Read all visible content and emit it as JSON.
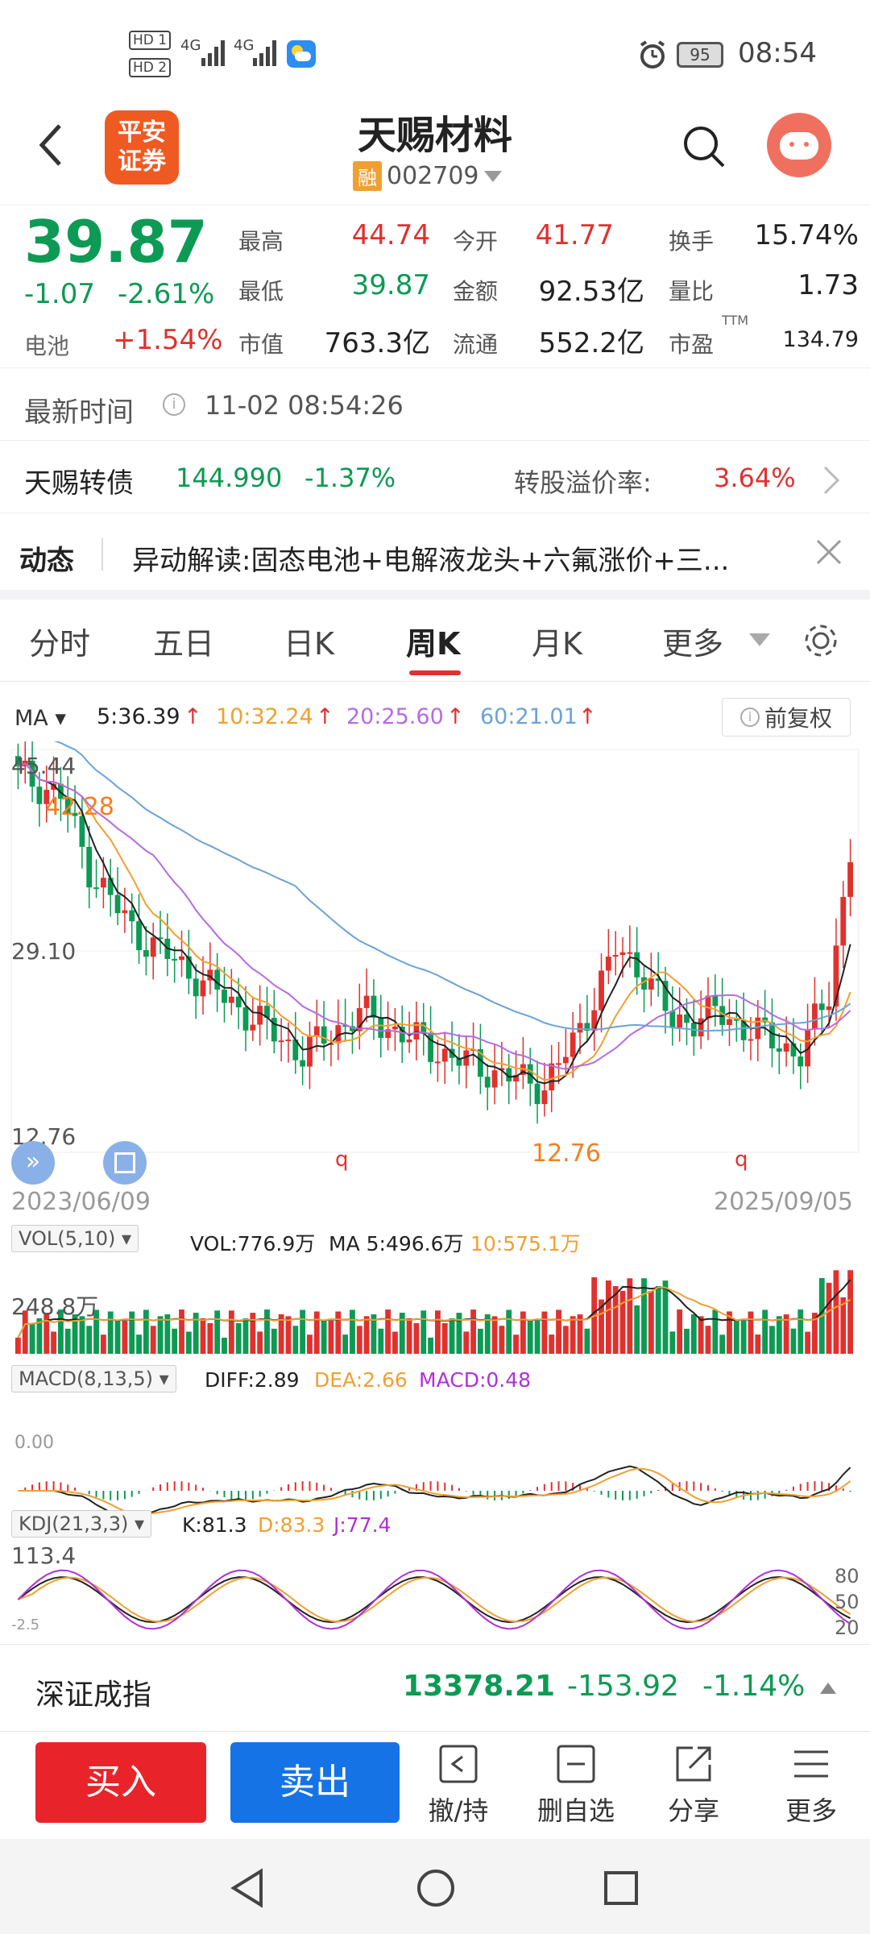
{
  "status_bar": {
    "hd1": "HD 1",
    "hd2": "HD 2",
    "net1": "4G",
    "net2": "4G",
    "battery": "95",
    "time": "08:54"
  },
  "header": {
    "logo_line1": "平安",
    "logo_line2": "证券",
    "title": "天赐材料",
    "rong_badge": "融",
    "code": "002709"
  },
  "quote": {
    "price": "39.87",
    "change": "-1.07",
    "change_pct": "-2.61%",
    "sector_label": "电池",
    "sector_pct": "+1.54%",
    "high_label": "最高",
    "high": "44.74",
    "low_label": "最低",
    "low": "39.87",
    "mktcap_label": "市值",
    "mktcap": "763.3亿",
    "open_label": "今开",
    "open": "41.77",
    "amount_label": "金额",
    "amount": "92.53亿",
    "float_label": "流通",
    "float": "552.2亿",
    "turnover_label": "换手",
    "turnover": "15.74%",
    "volratio_label": "量比",
    "volratio": "1.73",
    "pe_label": "市盈",
    "pe_sup": "TTM",
    "pe": "134.79"
  },
  "latest_time": {
    "label": "最新时间",
    "value": "11-02 08:54:26"
  },
  "bond": {
    "name": "天赐转债",
    "price": "144.990",
    "pct": "-1.37%",
    "premium_label": "转股溢价率:",
    "premium": "3.64%"
  },
  "news": {
    "label": "动态",
    "text": "异动解读:固态电池+电解液龙头+六氟涨价+三..."
  },
  "tabs": [
    "分时",
    "五日",
    "日K",
    "周K",
    "月K",
    "更多"
  ],
  "active_tab": "周K",
  "ma_legend": {
    "label": "MA",
    "ma5": "5:36.39",
    "ma10": "10:32.24",
    "ma20": "20:25.60",
    "ma60": "60:21.01",
    "restore": "前复权"
  },
  "price_chart": {
    "y_top": "45.44",
    "y_mid": "29.10",
    "y_bot": "12.76",
    "high_mark": "42.28",
    "low_mark": "12.76",
    "q1": "q",
    "q2": "q",
    "date_start": "2023/06/09",
    "date_end": "2025/09/05"
  },
  "vol": {
    "label": "VOL(5,10)",
    "vol": "VOL:776.9万",
    "ma5": "MA 5:496.6万",
    "ma10": "10:575.1万",
    "axis": "248.8万"
  },
  "macd": {
    "label": "MACD(8,13,5)",
    "diff": "DIFF:2.89",
    "dea": "DEA:2.66",
    "macd": "MACD:0.48",
    "axis": "0.00"
  },
  "kdj": {
    "label": "KDJ(21,3,3)",
    "k": "K:81.3",
    "d": "D:83.3",
    "j": "J:77.4",
    "axis_top": "113.4",
    "axis_bot": "-2.5",
    "lvl80": "80",
    "lvl50": "50",
    "lvl20": "20"
  },
  "index_bar": {
    "name": "深证成指",
    "value": "13378.21",
    "change": "-153.92",
    "pct": "-1.14%"
  },
  "actions": {
    "buy": "买入",
    "sell": "卖出",
    "withdraw": "撤/持",
    "del_fav": "删自选",
    "share": "分享",
    "more": "更多"
  },
  "colors": {
    "up": "#e0312f",
    "down": "#0c9a54",
    "ma5": "#222222",
    "ma10": "#f0a030",
    "ma20": "#b66be3",
    "ma60": "#6aa3d8",
    "buy": "#e8242a",
    "sell": "#1673e6"
  }
}
